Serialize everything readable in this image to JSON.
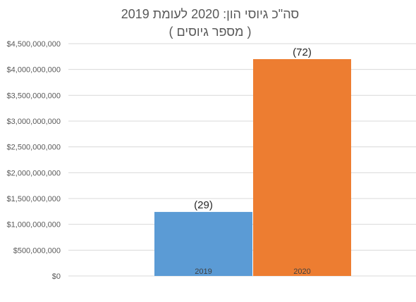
{
  "chart_data": {
    "type": "bar",
    "title": "סה\"כ גיוסי הון: 2020 לעומת 2019",
    "subtitle": "( מספר גיוסים )",
    "categories": [
      "2019",
      "2020"
    ],
    "values": [
      1240000000,
      4200000000
    ],
    "data_labels": [
      "(29)",
      "(72)"
    ],
    "colors": [
      "#5b9bd5",
      "#ed7d31"
    ],
    "ylim": [
      0,
      4500000000
    ],
    "yticks": [
      0,
      500000000,
      1000000000,
      1500000000,
      2000000000,
      2500000000,
      3000000000,
      3500000000,
      4000000000,
      4500000000
    ],
    "ytick_labels": [
      "$0",
      "$500,000,000",
      "$1,000,000,000",
      "$1,500,000,000",
      "$2,000,000,000",
      "$2,500,000,000",
      "$3,000,000,000",
      "$3,500,000,000",
      "$4,000,000,000",
      "$4,500,000,000"
    ],
    "xlabel": "",
    "ylabel": "",
    "grid": true,
    "legend": "none"
  }
}
